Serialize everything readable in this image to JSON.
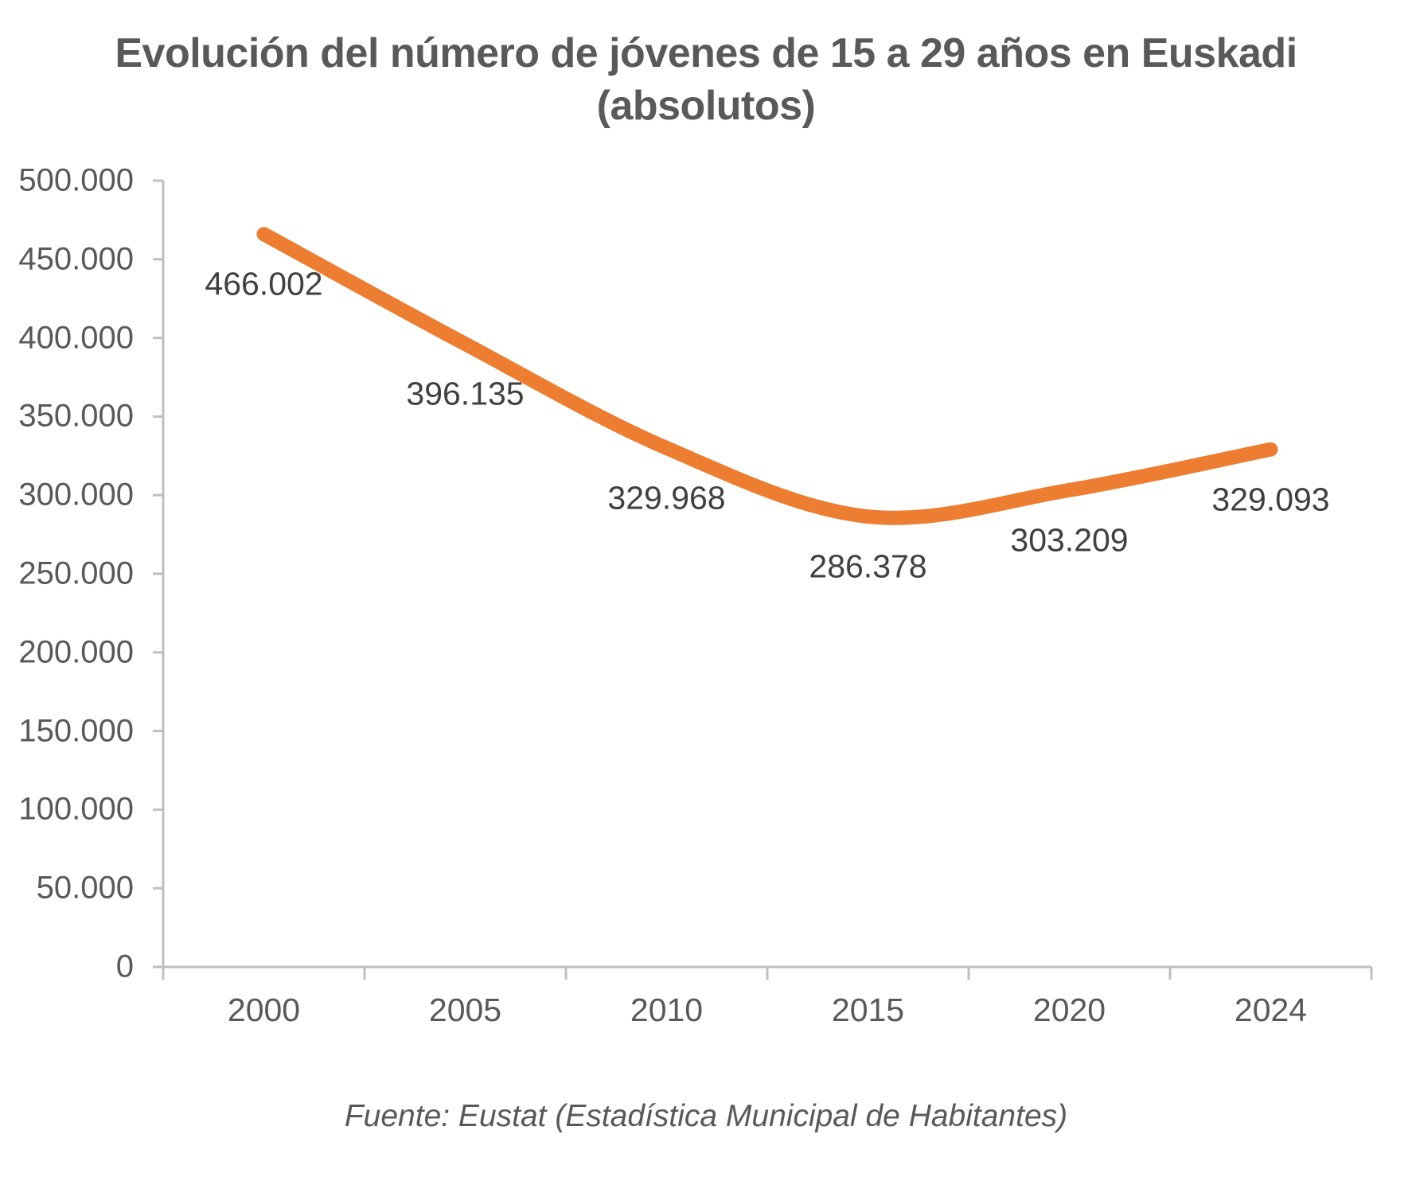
{
  "title": {
    "line1": "Evolución del número de jóvenes de 15 a 29 años en Euskadi",
    "line2": "(absolutos)"
  },
  "source": "Fuente: Eustat (Estadística Municipal de Habitantes)",
  "colors": {
    "line": "#ED7D31",
    "axis": "#BFBFBF",
    "tick_label": "#595959",
    "data_label": "#404040",
    "title_text": "#595959"
  },
  "chart_data": {
    "type": "line",
    "title": "Evolución del número de jóvenes de 15 a 29 años en Euskadi (absolutos)",
    "subtitle": "(absolutos)",
    "categories": [
      "2000",
      "2005",
      "2010",
      "2015",
      "2020",
      "2024"
    ],
    "series": [
      {
        "name": "Jóvenes de 15 a 29 años",
        "values": [
          466002,
          396135,
          329968,
          286378,
          303209,
          329093
        ]
      }
    ],
    "data_labels": [
      "466.002",
      "396.135",
      "329.968",
      "286.378",
      "303.209",
      "329.093"
    ],
    "y_ticks": [
      0,
      50000,
      100000,
      150000,
      200000,
      250000,
      300000,
      350000,
      400000,
      450000,
      500000
    ],
    "y_tick_labels": [
      "0",
      "50.000",
      "100.000",
      "150.000",
      "200.000",
      "250.000",
      "300.000",
      "350.000",
      "400.000",
      "450.000",
      "500.000"
    ],
    "ylim": [
      0,
      500000
    ],
    "xlabel": "",
    "ylabel": "",
    "grid": false,
    "legend": "none",
    "smooth": true,
    "line_color": "#ED7D31",
    "caption": "Fuente: Eustat (Estadística Municipal de Habitantes)"
  }
}
